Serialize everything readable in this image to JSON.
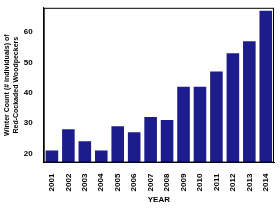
{
  "chart_data": {
    "type": "bar",
    "xlabel": "YEAR",
    "ylabel": "Winter Count (# individuals) of\nRed-Cockaded Woodpeckers",
    "categories": [
      "2001",
      "2002",
      "2003",
      "2004",
      "2005",
      "2006",
      "2007",
      "2008",
      "2009",
      "2010",
      "2011",
      "2012",
      "2013",
      "2014"
    ],
    "values": [
      21,
      28,
      24,
      21,
      29,
      27,
      32,
      31,
      42,
      42,
      47,
      53,
      57,
      67
    ],
    "color": "#1c1c8c",
    "ylim": [
      17,
      68
    ],
    "yticks": [
      20,
      30,
      40,
      50,
      60
    ],
    "grid": false
  }
}
